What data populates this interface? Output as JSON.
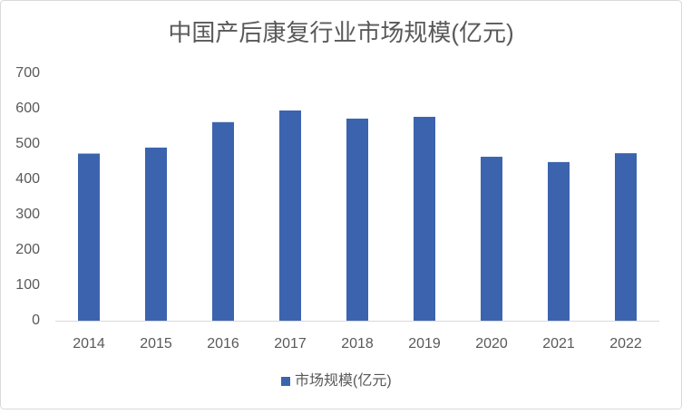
{
  "chart_data": {
    "type": "bar",
    "title": "中国产后康复行业市场规模(亿元)",
    "categories": [
      "2014",
      "2015",
      "2016",
      "2017",
      "2018",
      "2019",
      "2020",
      "2021",
      "2022"
    ],
    "series": [
      {
        "name": "市场规模(亿元)",
        "color": "#3c63ae",
        "values": [
          473,
          490,
          562,
          595,
          572,
          577,
          464,
          449,
          474
        ]
      }
    ],
    "ylim": [
      0,
      700
    ],
    "yticks": [
      0,
      100,
      200,
      300,
      400,
      500,
      600,
      700
    ],
    "grid": false,
    "legend": "bottom"
  }
}
